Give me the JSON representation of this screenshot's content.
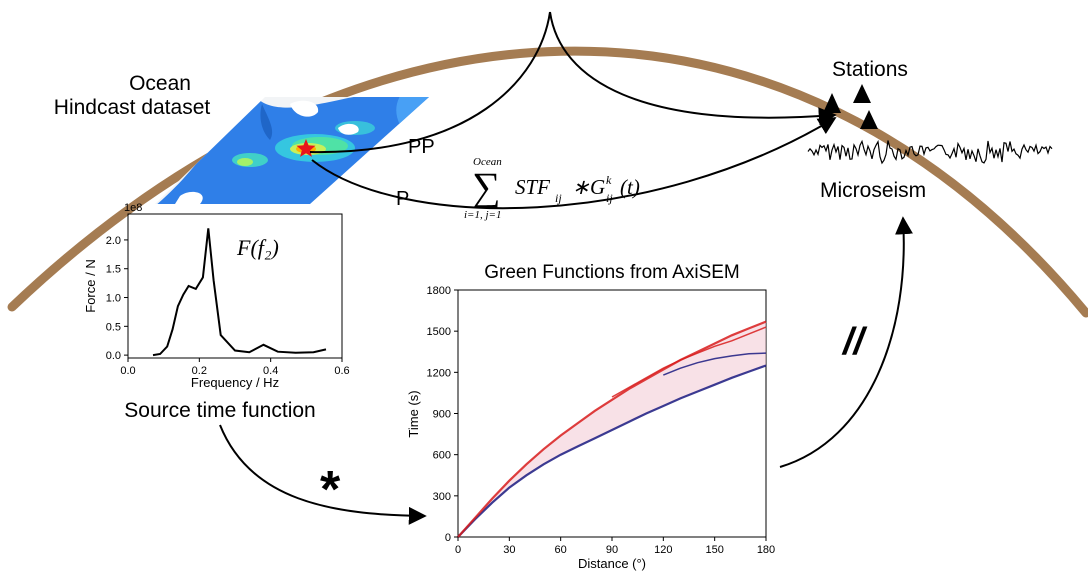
{
  "labels": {
    "ocean_line1": "Ocean",
    "ocean_line2": "Hindcast dataset",
    "stations": "Stations",
    "microseism": "Microseism",
    "pp": "PP",
    "p": "P",
    "source_time_function": "Source time function",
    "green_title": "Green Functions from AxiSEM",
    "convolution": "*",
    "equals": "//"
  },
  "formula": {
    "sum_top": "Ocean",
    "sum_bottom": "i=1, j=1",
    "body": "STF",
    "body_sub": "ij",
    "operator": "∗",
    "g": "G",
    "g_sub": "ij",
    "g_sup": "k",
    "arg": "(t)"
  },
  "colors": {
    "earth_surface": "#a57c52",
    "ocean_blue": "#2f7fe8",
    "source_star": "#e8151b",
    "arrival_red": "#d81c1c",
    "arrival_blue": "#1a1a80"
  },
  "chart_data": [
    {
      "type": "line",
      "title": "",
      "formula_label": "F(f₂)",
      "xlabel": "Frequency / Hz",
      "ylabel": "Force / N",
      "offset_text": "1e8",
      "xlim": [
        0.0,
        0.6
      ],
      "ylim": [
        -0.05,
        2.45
      ],
      "x_ticks": [
        "0.0",
        "0.2",
        "0.4",
        "0.6"
      ],
      "y_ticks": [
        "0.0",
        "0.5",
        "1.0",
        "1.5",
        "2.0"
      ],
      "x": [
        0.07,
        0.09,
        0.11,
        0.125,
        0.14,
        0.155,
        0.17,
        0.19,
        0.21,
        0.225,
        0.24,
        0.26,
        0.3,
        0.34,
        0.38,
        0.42,
        0.47,
        0.52,
        0.555
      ],
      "y": [
        0.0,
        0.02,
        0.15,
        0.45,
        0.85,
        1.05,
        1.2,
        1.15,
        1.35,
        2.2,
        1.3,
        0.35,
        0.08,
        0.05,
        0.18,
        0.06,
        0.04,
        0.05,
        0.1
      ]
    },
    {
      "type": "heatmap",
      "title": "Green Functions from AxiSEM",
      "xlabel": "Distance (°)",
      "ylabel": "Time (s)",
      "xlim": [
        0,
        180
      ],
      "ylim": [
        0,
        1800
      ],
      "x_ticks": [
        "0",
        "30",
        "60",
        "90",
        "120",
        "150",
        "180"
      ],
      "y_ticks": [
        "0",
        "300",
        "600",
        "900",
        "1200",
        "1500",
        "1800"
      ],
      "series": [
        {
          "name": "",
          "x": [
            0,
            10,
            20,
            30,
            40,
            50,
            60,
            70,
            80,
            90,
            100,
            110,
            120,
            130,
            140,
            150,
            160,
            170,
            180
          ],
          "y": [
            0,
            130,
            250,
            360,
            450,
            530,
            600,
            660,
            720,
            780,
            840,
            900,
            955,
            1010,
            1060,
            1110,
            1160,
            1205,
            1250
          ]
        },
        {
          "name": "",
          "x": [
            0,
            10,
            20,
            30,
            40,
            50,
            60,
            70,
            80,
            90,
            100,
            110,
            120,
            130,
            140,
            150,
            160,
            170,
            180
          ],
          "y": [
            0,
            140,
            280,
            410,
            530,
            640,
            740,
            830,
            920,
            1000,
            1080,
            1150,
            1220,
            1290,
            1350,
            1410,
            1470,
            1520,
            1570
          ]
        },
        {
          "name": "",
          "x": [
            90,
            100,
            110,
            120,
            130,
            140,
            150,
            160,
            170,
            180
          ],
          "y": [
            1020,
            1090,
            1160,
            1230,
            1290,
            1340,
            1390,
            1430,
            1480,
            1530
          ]
        },
        {
          "name": "",
          "x": [
            120,
            130,
            140,
            150,
            160,
            170,
            180
          ],
          "y": [
            1180,
            1230,
            1270,
            1300,
            1320,
            1335,
            1340
          ]
        }
      ]
    }
  ]
}
